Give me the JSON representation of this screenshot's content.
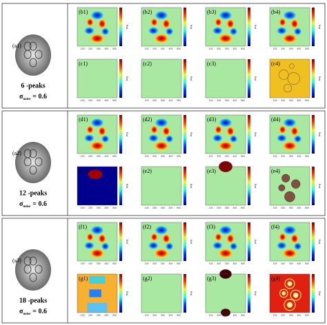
{
  "groups": [
    {
      "image_label": "(a1)",
      "peaks": "6 -peaks",
      "noise_symbol": "σ",
      "noise_sub": "noise",
      "noise_value": "= 0.6",
      "panels": [
        [
          "(b1)",
          "(b2)",
          "(b3)",
          "(b4)"
        ],
        [
          "(c1)",
          "(c2)",
          "(c3)",
          "(c4)"
        ]
      ]
    },
    {
      "image_label": "(a2)",
      "peaks": "12 -peaks",
      "noise_symbol": "σ",
      "noise_sub": "noise",
      "noise_value": "= 0.6",
      "panels": [
        [
          "(d1)",
          "(d2)",
          "(d3)",
          "(d4)"
        ],
        [
          "(e1)",
          "(e2)",
          "(e3)",
          "(e4)"
        ]
      ]
    },
    {
      "image_label": "(a3)",
      "peaks": "18 -peaks",
      "noise_symbol": "σ",
      "noise_sub": "noise",
      "noise_value": "= 0.6",
      "panels": [
        [
          "(f1)",
          "(f2)",
          "(f3)",
          "(f4)"
        ],
        [
          "(g1)",
          "(g2)",
          "(g3)",
          "(g4)"
        ]
      ]
    }
  ],
  "axis_ticks": [
    "100",
    "200",
    "300",
    "400",
    "500"
  ],
  "colorbar_label": "Rad"
}
